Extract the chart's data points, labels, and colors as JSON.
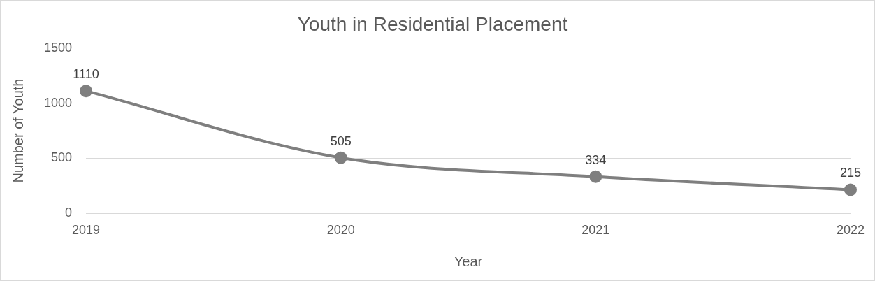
{
  "chart_data": {
    "type": "line",
    "title": "Youth in Residential Placement",
    "xlabel": "Year",
    "ylabel": "Number of Youth",
    "categories": [
      "2019",
      "2020",
      "2021",
      "2022"
    ],
    "series": [
      {
        "color": "#7f7f7f",
        "values": [
          1110,
          505,
          334,
          215
        ]
      }
    ],
    "ylim": [
      0,
      1500
    ],
    "yticks": [
      0,
      500,
      1000,
      1500
    ],
    "grid": "y",
    "legend": false,
    "marker": "circle",
    "line_style": "solid",
    "data_labels": true
  }
}
